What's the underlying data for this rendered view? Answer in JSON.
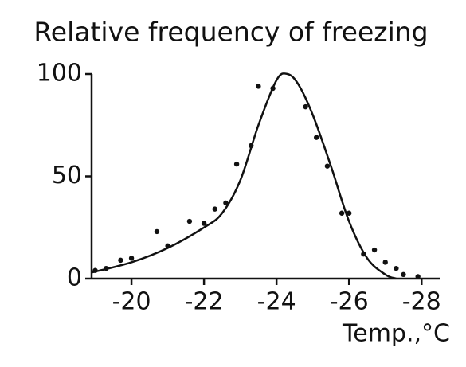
{
  "chart_data": {
    "type": "scatter",
    "title": "Relative frequency of freezing",
    "xlabel": "Temp.,°C",
    "xlim": [
      -18.9,
      -28.5
    ],
    "ylim": [
      0,
      100
    ],
    "xticks": [
      -20,
      -22,
      -24,
      -26,
      -28
    ],
    "yticks": [
      0,
      50,
      100
    ],
    "color": "#111111",
    "points": {
      "x": [
        -19.0,
        -19.3,
        -19.7,
        -20.0,
        -20.7,
        -21.0,
        -21.6,
        -22.0,
        -22.3,
        -22.6,
        -22.9,
        -23.3,
        -23.5,
        -23.9,
        -24.8,
        -25.1,
        -25.4,
        -25.8,
        -26.0,
        -26.4,
        -26.7,
        -27.0,
        -27.3,
        -27.5,
        -27.9
      ],
      "y": [
        4,
        5,
        9,
        10,
        23,
        16,
        28,
        27,
        34,
        37,
        56,
        65,
        94,
        93,
        84,
        69,
        55,
        32,
        32,
        12,
        14,
        8,
        5,
        2,
        1
      ]
    },
    "curve": {
      "x": [
        -18.9,
        -20,
        -21,
        -22,
        -22.5,
        -23,
        -23.5,
        -24,
        -24.3,
        -24.6,
        -25,
        -25.5,
        -26,
        -26.5,
        -27,
        -27.3
      ],
      "y": [
        3,
        8,
        15,
        25,
        32,
        48,
        75,
        97,
        100,
        95,
        80,
        55,
        28,
        10,
        2,
        0
      ]
    }
  }
}
